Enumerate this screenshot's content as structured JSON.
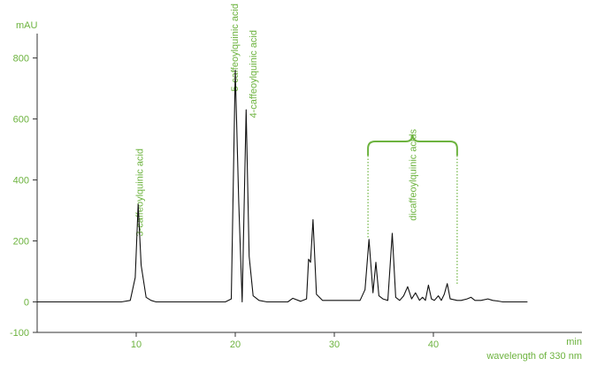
{
  "chart_data": {
    "type": "line",
    "ylabel": "mAU",
    "xlabel": "min",
    "note": "wavelength of 330 nm",
    "xlim": [
      0,
      55
    ],
    "ylim": [
      -100,
      880
    ],
    "xticks": [
      10,
      20,
      30,
      40
    ],
    "yticks": [
      -100,
      0,
      200,
      400,
      600,
      800
    ],
    "grid": false,
    "colors": {
      "trace": "#111111",
      "accent": "#6db33f"
    },
    "series": [
      {
        "x": [
          0,
          8.5,
          9.4,
          9.9,
          10.2,
          10.5,
          11.0,
          11.5,
          12.0,
          19.0,
          19.6,
          20.0,
          20.35,
          20.7,
          21.1,
          21.4,
          21.8,
          22.4,
          23.2,
          25.3,
          25.8,
          26.6,
          27.2,
          27.4,
          27.6,
          27.85,
          28.2,
          28.8,
          32.6,
          33.1,
          33.5,
          33.9,
          34.2,
          34.5,
          34.9,
          35.4,
          35.85,
          36.2,
          36.6,
          37.0,
          37.4,
          37.8,
          38.2,
          38.6,
          38.9,
          39.2,
          39.5,
          39.8,
          40.1,
          40.5,
          40.8,
          41.1,
          41.4,
          41.7,
          42.0,
          42.4,
          42.8,
          43.4,
          43.8,
          44.2,
          44.8,
          45.5,
          46.0,
          46.5,
          47.0,
          49.5
        ],
        "y": [
          0,
          0,
          5,
          80,
          320,
          120,
          15,
          5,
          0,
          0,
          10,
          760,
          330,
          0,
          630,
          150,
          20,
          5,
          0,
          0,
          12,
          2,
          10,
          140,
          130,
          270,
          25,
          5,
          5,
          40,
          205,
          30,
          130,
          20,
          10,
          5,
          225,
          15,
          5,
          20,
          50,
          10,
          30,
          5,
          15,
          5,
          55,
          10,
          5,
          20,
          5,
          25,
          60,
          10,
          8,
          5,
          5,
          10,
          15,
          5,
          5,
          10,
          5,
          3,
          0,
          0
        ]
      }
    ],
    "annotations": [
      {
        "text": "3-caffeoylquinic acid",
        "x": 10.3
      },
      {
        "text": "5-caffeoylquinic acid",
        "x": 19.9
      },
      {
        "text": "4-caffeoylquinic acid",
        "x": 21.8
      },
      {
        "text": "dicaffeoylquinic acids",
        "x_range": [
          33.4,
          42.4
        ]
      }
    ]
  }
}
